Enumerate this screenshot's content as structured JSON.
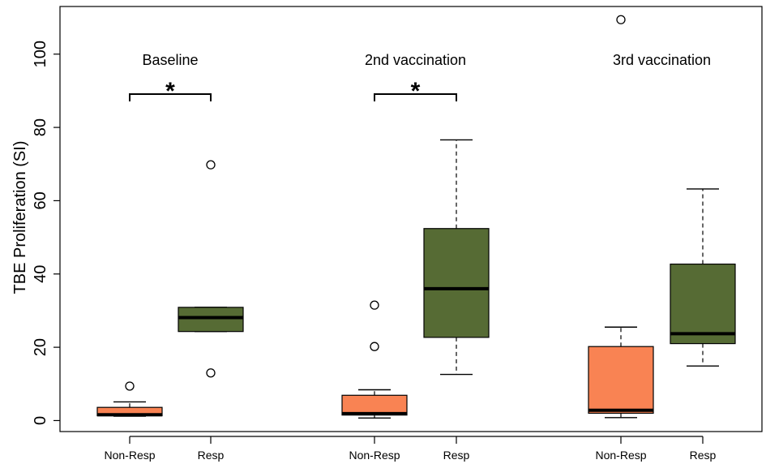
{
  "chart_data": {
    "type": "box",
    "title": "",
    "xlabel": "",
    "ylabel": "TBE Proliferation (SI)",
    "ylim": [
      -3,
      113
    ],
    "yticks": [
      0,
      20,
      40,
      60,
      80,
      100
    ],
    "grid": false,
    "legend": "none",
    "colors": {
      "Non-Resp": "#f98353",
      "Resp": "#566b34"
    },
    "groups": [
      {
        "label": "Baseline",
        "significance": "*",
        "boxes": [
          {
            "category": "Non-Resp",
            "whisker_low": 1.2,
            "q1": 1.3,
            "median": 1.6,
            "q3": 3.6,
            "whisker_high": 5.1,
            "outliers": [
              9.4
            ]
          },
          {
            "category": "Resp",
            "whisker_low": 24.3,
            "q1": 24.3,
            "median": 28.1,
            "q3": 30.9,
            "whisker_high": 30.9,
            "outliers": [
              69.8,
              13.0
            ]
          }
        ]
      },
      {
        "label": "2nd vaccination",
        "significance": "*",
        "boxes": [
          {
            "category": "Non-Resp",
            "whisker_low": 0.7,
            "q1": 1.5,
            "median": 1.9,
            "q3": 6.9,
            "whisker_high": 8.4,
            "outliers": [
              20.2,
              31.5
            ]
          },
          {
            "category": "Resp",
            "whisker_low": 12.6,
            "q1": 22.7,
            "median": 36.0,
            "q3": 52.4,
            "whisker_high": 76.6,
            "outliers": []
          }
        ]
      },
      {
        "label": "3rd vaccination",
        "significance": "",
        "boxes": [
          {
            "category": "Non-Resp",
            "whisker_low": 0.8,
            "q1": 2.0,
            "median": 2.8,
            "q3": 20.2,
            "whisker_high": 25.5,
            "outliers": [
              109.4
            ]
          },
          {
            "category": "Resp",
            "whisker_low": 14.9,
            "q1": 21.0,
            "median": 23.7,
            "q3": 42.7,
            "whisker_high": 63.2,
            "outliers": []
          }
        ]
      }
    ]
  }
}
